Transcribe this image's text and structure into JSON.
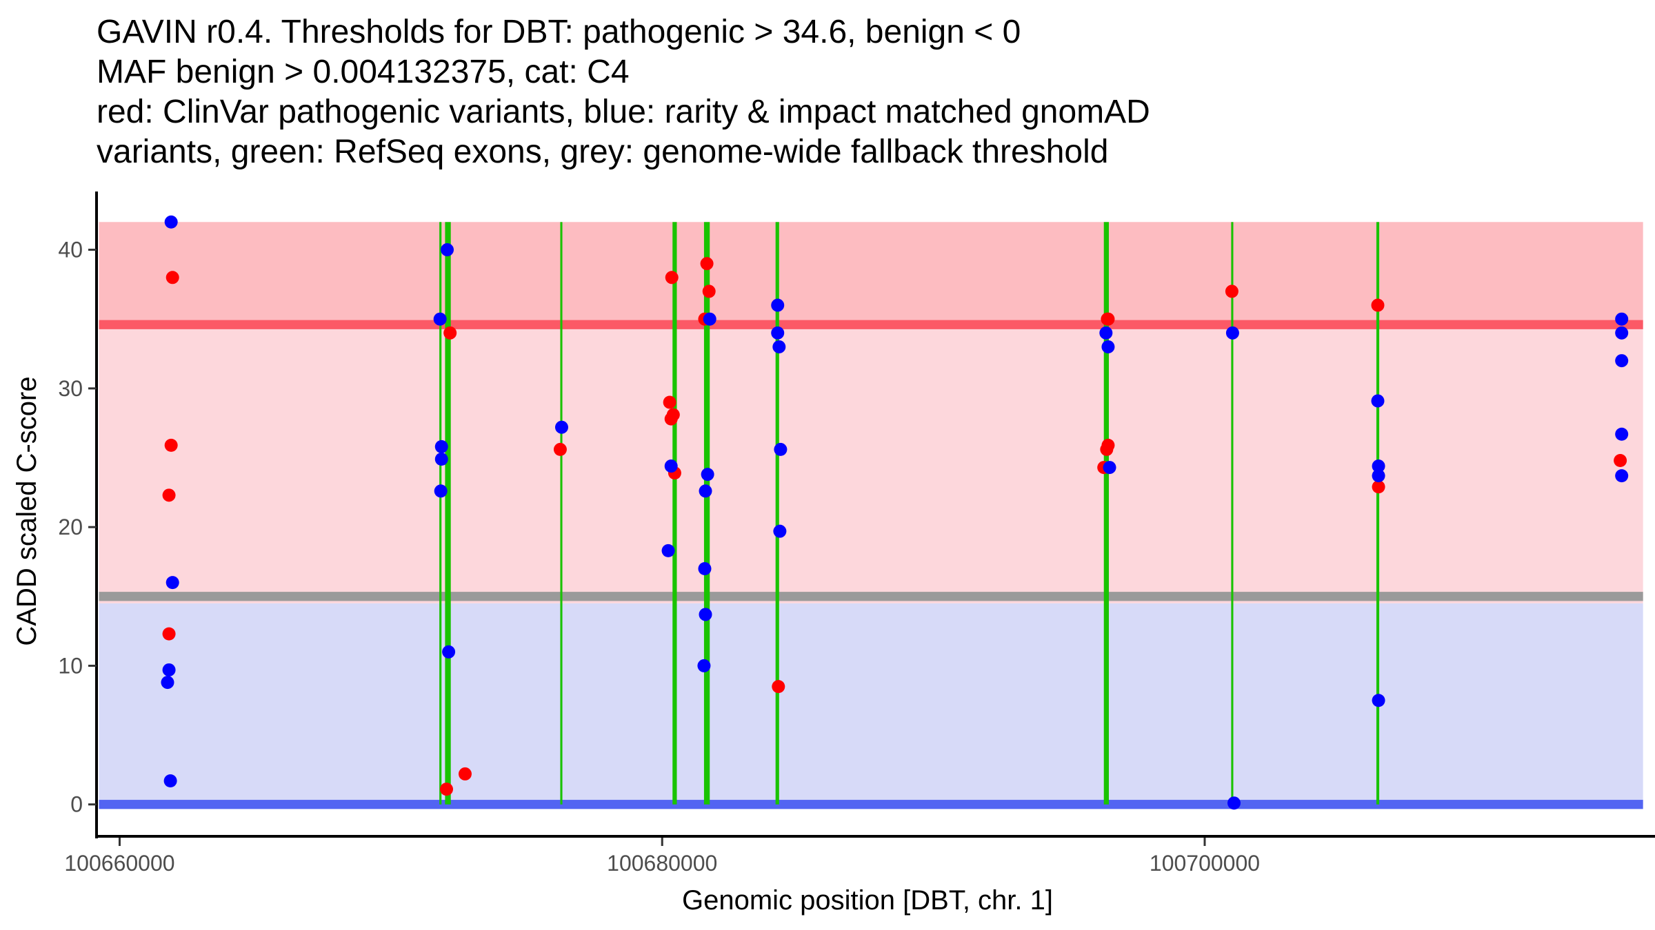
{
  "chart_data": {
    "type": "scatter",
    "title_lines": [
      "GAVIN r0.4. Thresholds for DBT: pathogenic > 34.6, benign < 0",
      "MAF benign > 0.004132375, cat: C4",
      "red: ClinVar pathogenic variants, blue: rarity & impact matched gnomAD",
      "variants, green: RefSeq exons, grey: genome-wide fallback threshold"
    ],
    "xlabel": "Genomic position [DBT, chr. 1]",
    "ylabel": "CADD scaled C-score",
    "xlim": [
      100659200,
      100716600
    ],
    "ylim": [
      -2.2,
      44.2
    ],
    "xticks": [
      100660000,
      100680000,
      100700000
    ],
    "xtick_labels": [
      "100660000",
      "100680000",
      "100700000"
    ],
    "yticks": [
      0,
      10,
      20,
      30,
      40
    ],
    "ytick_labels": [
      "0",
      "10",
      "20",
      "30",
      "40"
    ],
    "grid": false,
    "legend": "none",
    "colors": {
      "pathogenic": "#ff0000",
      "population": "#0000ff",
      "exon": "#19c300",
      "pathogenic_zone_upper": "#fdbcc1",
      "pathogenic_threshold_line": "#fc5966",
      "mid_zone": "#fdd7dc",
      "fallback_line": "#9a9a9a",
      "benign_zone": "#d7daf8",
      "benign_threshold_line": "#5264f2"
    },
    "regions": {
      "x_range": [
        100660000,
        100715600
      ],
      "pathogenic_upper": {
        "ymin": 34.6,
        "ymax": 42.0
      },
      "mid": {
        "ymin": 14.5,
        "ymax": 34.6
      },
      "benign": {
        "ymin": 0,
        "ymax": 14.5
      }
    },
    "thresholds": {
      "pathogenic": 34.6,
      "benign": 0,
      "genome_wide_fallback": 15.0
    },
    "exons": [
      {
        "start": 100671786,
        "end": 100671866
      },
      {
        "start": 100671997,
        "end": 100672208
      },
      {
        "start": 100676243,
        "end": 100676322
      },
      {
        "start": 100680382,
        "end": 100680541
      },
      {
        "start": 100681543,
        "end": 100681754
      },
      {
        "start": 100684180,
        "end": 100684311
      },
      {
        "start": 100696282,
        "end": 100696467
      },
      {
        "start": 100700976,
        "end": 100701055
      },
      {
        "start": 100706329,
        "end": 100706434
      }
    ],
    "exon_ymax": 42.0,
    "series": [
      {
        "name": "ClinVar pathogenic variants",
        "color": "red",
        "points": [
          [
            100661951,
            38.0
          ],
          [
            100661899,
            25.9
          ],
          [
            100661820,
            22.3
          ],
          [
            100661820,
            12.3
          ],
          [
            100672182,
            34.0
          ],
          [
            100672736,
            2.2
          ],
          [
            100672050,
            1.1
          ],
          [
            100676243,
            25.6
          ],
          [
            100680356,
            38.0
          ],
          [
            100680277,
            29.0
          ],
          [
            100680409,
            28.1
          ],
          [
            100680330,
            27.8
          ],
          [
            100680462,
            23.9
          ],
          [
            100681649,
            39.0
          ],
          [
            100681728,
            37.0
          ],
          [
            100681570,
            35.0
          ],
          [
            100684285,
            8.5
          ],
          [
            100696440,
            35.0
          ],
          [
            100696414,
            35.0
          ],
          [
            100696440,
            25.9
          ],
          [
            100696387,
            25.6
          ],
          [
            100696282,
            24.3
          ],
          [
            100701002,
            37.0
          ],
          [
            100706381,
            36.0
          ],
          [
            100706408,
            22.9
          ],
          [
            100715319,
            24.8
          ]
        ]
      },
      {
        "name": "rarity & impact matched gnomAD variants",
        "color": "blue",
        "points": [
          [
            100661899,
            42.0
          ],
          [
            100661951,
            16.0
          ],
          [
            100661820,
            9.7
          ],
          [
            100661767,
            8.8
          ],
          [
            100661872,
            1.7
          ],
          [
            100672076,
            40.0
          ],
          [
            100671813,
            35.0
          ],
          [
            100671866,
            25.8
          ],
          [
            100671866,
            24.9
          ],
          [
            100671839,
            22.6
          ],
          [
            100672129,
            11.0
          ],
          [
            100676295,
            27.2
          ],
          [
            100680330,
            24.4
          ],
          [
            100680224,
            18.3
          ],
          [
            100681754,
            35.0
          ],
          [
            100681675,
            23.8
          ],
          [
            100681596,
            22.6
          ],
          [
            100681570,
            17.0
          ],
          [
            100681596,
            13.7
          ],
          [
            100681543,
            10.0
          ],
          [
            100684258,
            36.0
          ],
          [
            100684258,
            34.0
          ],
          [
            100684311,
            33.0
          ],
          [
            100684364,
            25.6
          ],
          [
            100684338,
            19.7
          ],
          [
            100696361,
            34.0
          ],
          [
            100696440,
            33.0
          ],
          [
            100696493,
            24.3
          ],
          [
            100701028,
            34.0
          ],
          [
            100701081,
            0.1
          ],
          [
            100706381,
            29.1
          ],
          [
            100706408,
            24.4
          ],
          [
            100706408,
            23.7
          ],
          [
            100706408,
            7.5
          ],
          [
            100715372,
            35.0
          ],
          [
            100715372,
            34.0
          ],
          [
            100715372,
            32.0
          ],
          [
            100715372,
            26.7
          ],
          [
            100715372,
            23.7
          ]
        ]
      }
    ]
  }
}
